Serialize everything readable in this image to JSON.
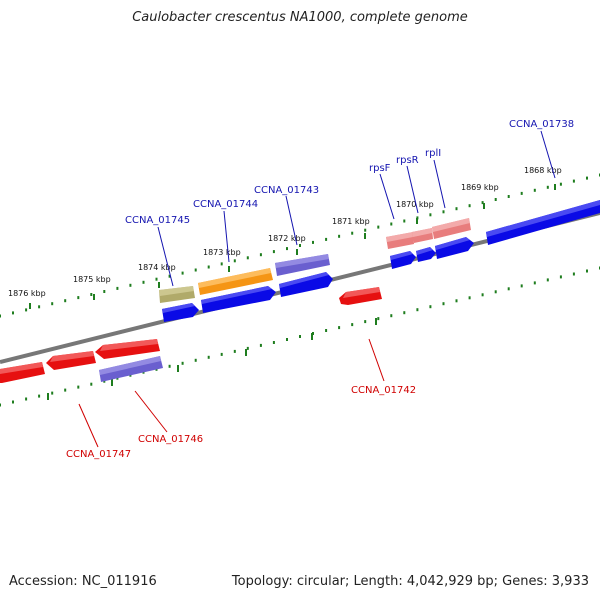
{
  "title": "Caulobacter crescentus NA1000, complete genome",
  "footer": {
    "accession": "Accession: NC_011916",
    "summary": "Topology: circular; Length: 4,042,929 bp; Genes: 3,933"
  },
  "colors": {
    "backbone": "#777777",
    "tick": "#1e7d1e",
    "label_top": "#1515b0",
    "label_bottom": "#d00000",
    "blue": "#0a0ae6",
    "red": "#e61010",
    "orange": "#f59514",
    "olive": "#b0aa6a",
    "purple": "#6a5fcf",
    "pink": "#e87d7d"
  },
  "kbp_labels": [
    "1868 kbp",
    "1869 kbp",
    "1870 kbp",
    "1871 kbp",
    "1872 kbp",
    "1873 kbp",
    "1874 kbp",
    "1875 kbp",
    "1876 kbp"
  ],
  "gene_labels": {
    "top": [
      "CCNA_01738",
      "rplI",
      "rpsR",
      "rpsF",
      "CCNA_01743",
      "CCNA_01744",
      "CCNA_01745"
    ],
    "bottom": [
      "CCNA_01742",
      "CCNA_01746",
      "CCNA_01747"
    ]
  }
}
